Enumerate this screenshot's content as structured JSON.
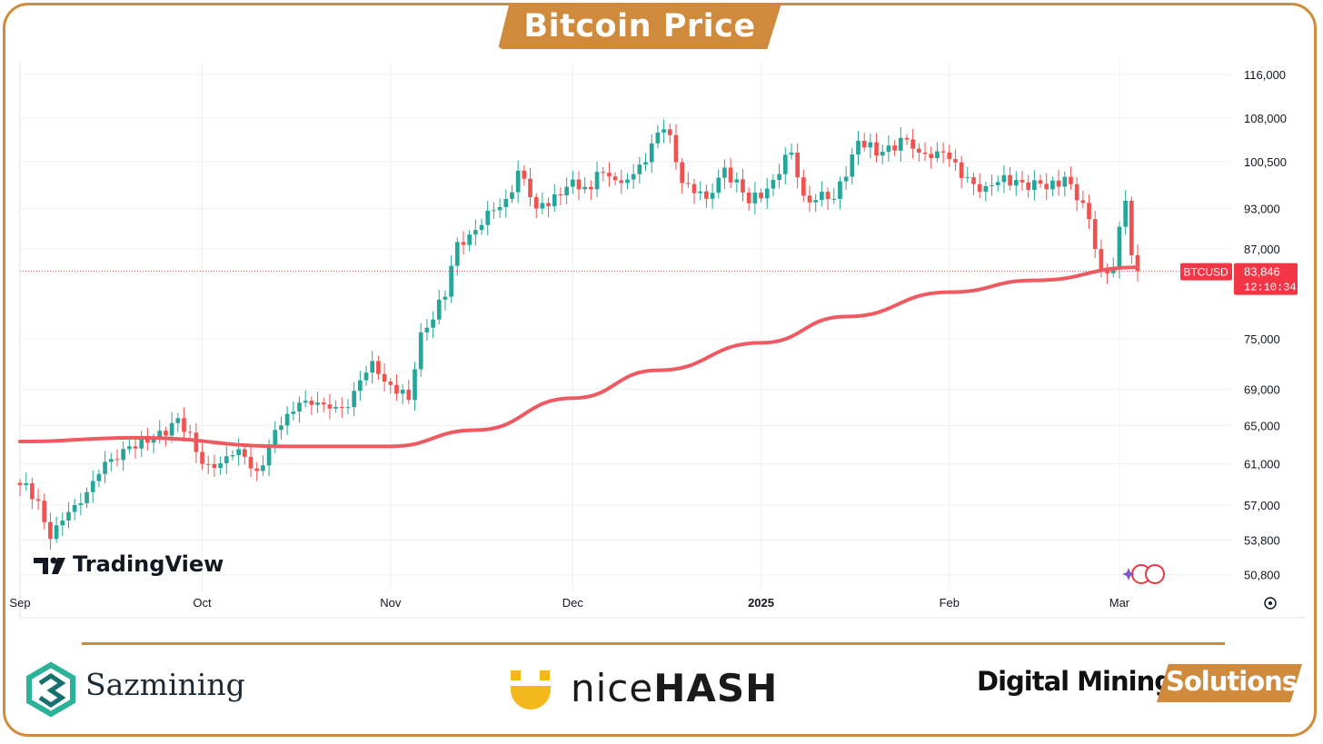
{
  "title": "Bitcoin Price",
  "watermark": "TradingView",
  "footer": {
    "sazmining": "Sazmining",
    "nicehash_light": "nice",
    "nicehash_bold": "HASH",
    "dms_black": "Digital Mining",
    "dms_tab": "Solutions"
  },
  "colors": {
    "frame": "#d18b3a",
    "up": "#26a69a",
    "down": "#ef5350",
    "ma": "#ef5a62",
    "badge": "#f23645"
  },
  "chart_data": {
    "type": "candlestick",
    "symbol": "BTCUSD",
    "last_price_label": "83,846",
    "countdown": "12:10:34",
    "y_ticks": [
      116000,
      108000,
      100500,
      93000,
      87000,
      75000,
      69000,
      65000,
      61000,
      57000,
      53800,
      50800
    ],
    "y_tick_labels": [
      "116,000",
      "108,000",
      "100,500",
      "93,000",
      "87,000",
      "75,000",
      "69,000",
      "65,000",
      "61,000",
      "57,000",
      "53,800",
      "50,800"
    ],
    "ylim": [
      49500,
      118500
    ],
    "y_scale": "log",
    "x_ticks": [
      {
        "label": "Sep",
        "date": "2024-09-01",
        "bold": false
      },
      {
        "label": "Oct",
        "date": "2024-10-01",
        "bold": false
      },
      {
        "label": "Nov",
        "date": "2024-11-01",
        "bold": false
      },
      {
        "label": "Dec",
        "date": "2024-12-01",
        "bold": false
      },
      {
        "label": "2025",
        "date": "2025-01-01",
        "bold": true
      },
      {
        "label": "Feb",
        "date": "2025-02-01",
        "bold": false
      },
      {
        "label": "Mar",
        "date": "2025-03-01",
        "bold": false
      }
    ],
    "xlim": [
      "2024-09-01",
      "2025-03-04"
    ],
    "grid": true,
    "close_anchors": [
      [
        "2024-09-01",
        58900
      ],
      [
        "2024-09-04",
        57400
      ],
      [
        "2024-09-06",
        53900
      ],
      [
        "2024-09-10",
        57000
      ],
      [
        "2024-09-14",
        60000
      ],
      [
        "2024-09-19",
        62800
      ],
      [
        "2024-09-23",
        63500
      ],
      [
        "2024-09-27",
        65800
      ],
      [
        "2024-10-01",
        61000
      ],
      [
        "2024-10-03",
        60600
      ],
      [
        "2024-10-07",
        62500
      ],
      [
        "2024-10-10",
        60300
      ],
      [
        "2024-10-14",
        65000
      ],
      [
        "2024-10-17",
        67500
      ],
      [
        "2024-10-21",
        67300
      ],
      [
        "2024-10-25",
        67000
      ],
      [
        "2024-10-29",
        72300
      ],
      [
        "2024-11-01",
        69500
      ],
      [
        "2024-11-04",
        67800
      ],
      [
        "2024-11-06",
        75800
      ],
      [
        "2024-11-10",
        80400
      ],
      [
        "2024-11-12",
        88000
      ],
      [
        "2024-11-16",
        90500
      ],
      [
        "2024-11-20",
        94500
      ],
      [
        "2024-11-22",
        99000
      ],
      [
        "2024-11-25",
        93000
      ],
      [
        "2024-11-30",
        96400
      ],
      [
        "2024-12-04",
        96000
      ],
      [
        "2024-12-05",
        98800
      ],
      [
        "2024-12-09",
        97000
      ],
      [
        "2024-12-12",
        100000
      ],
      [
        "2024-12-16",
        106000
      ],
      [
        "2024-12-17",
        105000
      ],
      [
        "2024-12-19",
        97000
      ],
      [
        "2024-12-23",
        94500
      ],
      [
        "2024-12-26",
        99500
      ],
      [
        "2024-12-30",
        93800
      ],
      [
        "2025-01-03",
        97500
      ],
      [
        "2025-01-06",
        102000
      ],
      [
        "2025-01-08",
        95000
      ],
      [
        "2025-01-13",
        94500
      ],
      [
        "2025-01-17",
        104000
      ],
      [
        "2025-01-20",
        101500
      ],
      [
        "2025-01-24",
        104500
      ],
      [
        "2025-01-27",
        102000
      ],
      [
        "2025-01-31",
        102000
      ],
      [
        "2025-02-03",
        97800
      ],
      [
        "2025-02-07",
        96500
      ],
      [
        "2025-02-12",
        97500
      ],
      [
        "2025-02-17",
        96000
      ],
      [
        "2025-02-20",
        98000
      ],
      [
        "2025-02-24",
        91400
      ],
      [
        "2025-02-26",
        84000
      ],
      [
        "2025-02-28",
        84300
      ],
      [
        "2025-03-02",
        94200
      ],
      [
        "2025-03-03",
        86100
      ],
      [
        "2025-03-04",
        83846
      ]
    ],
    "ma_points": [
      [
        "2024-09-01",
        63300
      ],
      [
        "2024-09-20",
        63700
      ],
      [
        "2024-10-15",
        62800
      ],
      [
        "2024-11-01",
        62800
      ],
      [
        "2024-11-15",
        64500
      ],
      [
        "2024-12-01",
        68000
      ],
      [
        "2024-12-15",
        71200
      ],
      [
        "2025-01-01",
        74500
      ],
      [
        "2025-01-15",
        77800
      ],
      [
        "2025-02-01",
        81000
      ],
      [
        "2025-02-15",
        82600
      ],
      [
        "2025-03-04",
        84400
      ]
    ]
  }
}
